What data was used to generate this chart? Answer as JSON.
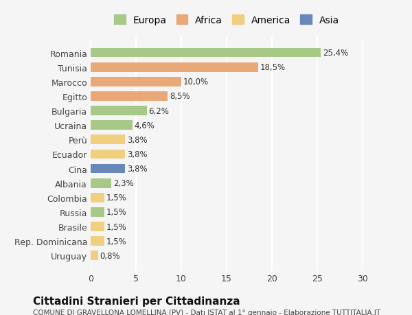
{
  "countries": [
    "Romania",
    "Tunisia",
    "Marocco",
    "Egitto",
    "Bulgaria",
    "Ucraina",
    "Perù",
    "Ecuador",
    "Cina",
    "Albania",
    "Colombia",
    "Russia",
    "Brasile",
    "Rep. Dominicana",
    "Uruguay"
  ],
  "values": [
    25.4,
    18.5,
    10.0,
    8.5,
    6.2,
    4.6,
    3.8,
    3.8,
    3.8,
    2.3,
    1.5,
    1.5,
    1.5,
    1.5,
    0.8
  ],
  "labels": [
    "25,4%",
    "18,5%",
    "10,0%",
    "8,5%",
    "6,2%",
    "4,6%",
    "3,8%",
    "3,8%",
    "3,8%",
    "2,3%",
    "1,5%",
    "1,5%",
    "1,5%",
    "1,5%",
    "0,8%"
  ],
  "colors": [
    "#a8c888",
    "#e8a878",
    "#e8a878",
    "#e8a878",
    "#a8c888",
    "#a8c888",
    "#f0d080",
    "#f0d080",
    "#6888b8",
    "#a8c888",
    "#f0d080",
    "#a8c888",
    "#f0d080",
    "#f0d080",
    "#f0d080"
  ],
  "legend": {
    "Europa": "#a8c888",
    "Africa": "#e8a878",
    "America": "#f0d080",
    "Asia": "#6888b8"
  },
  "xlim": [
    0,
    30
  ],
  "xticks": [
    0,
    5,
    10,
    15,
    20,
    25,
    30
  ],
  "title": "Cittadini Stranieri per Cittadinanza",
  "subtitle": "COMUNE DI GRAVELLONA LOMELLINA (PV) - Dati ISTAT al 1° gennaio - Elaborazione TUTTITALIA.IT",
  "background_color": "#f5f5f5",
  "grid_color": "#ffffff",
  "bar_height": 0.65
}
